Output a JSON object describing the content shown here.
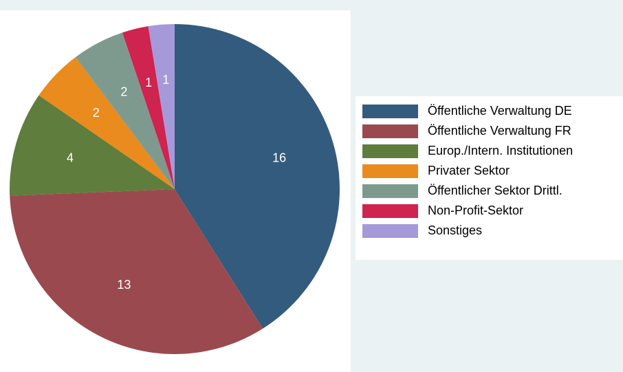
{
  "chart_data": {
    "type": "pie",
    "categories": [
      "Öffentliche Verwaltung DE",
      "Öffentliche Verwaltung FR",
      "Europ./Intern. Institutionen",
      "Privater Sektor",
      "Öffentlicher Sektor Drittl.",
      "Non-Profit-Sektor",
      "Sonstiges"
    ],
    "values": [
      16,
      13,
      4,
      2,
      2,
      1,
      1
    ],
    "colors": [
      "#335b7e",
      "#9a4a4f",
      "#5f7d3d",
      "#e98b1d",
      "#7e9a8f",
      "#cf2350",
      "#a699d9"
    ],
    "legend": "right"
  }
}
